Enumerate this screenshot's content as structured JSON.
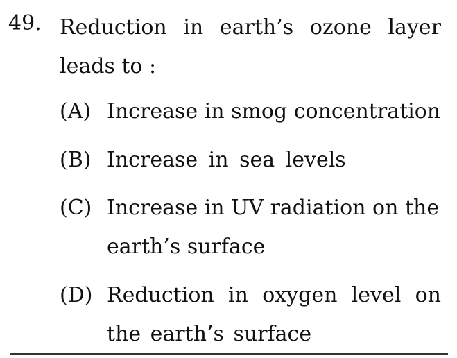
{
  "question": {
    "number": "49.",
    "stem_line1": "Reduction in earth’s ozone layer",
    "stem_line2": "leads to :",
    "options": [
      {
        "label": "(A)",
        "line1": "Increase in smog concentration",
        "line2": ""
      },
      {
        "label": "(B)",
        "line1": "Increase in sea levels",
        "line2": ""
      },
      {
        "label": "(C)",
        "line1": "Increase in UV radiation on the",
        "line2": "earth’s surface"
      },
      {
        "label": "(D)",
        "line1": "Reduction in oxygen level on",
        "line2": "the earth’s surface"
      }
    ]
  }
}
